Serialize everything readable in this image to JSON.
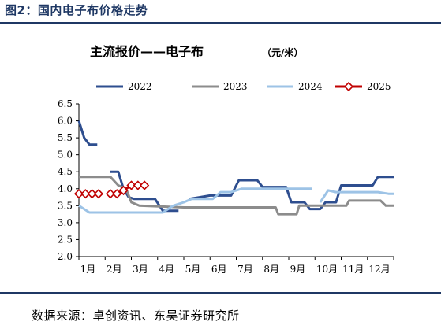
{
  "header": {
    "title": "图2：国内电子布价格走势"
  },
  "footer": {
    "source": "数据来源：卓创资讯、东吴证券研究所"
  },
  "chart_data": {
    "type": "line",
    "title": "主流报价——电子布",
    "unit": "（元/米）",
    "xlabel": "",
    "ylabel": "",
    "x_tick_labels": [
      "1月",
      "2月",
      "3月",
      "4月",
      "5月",
      "6月",
      "7月",
      "8月",
      "9月",
      "10月",
      "11月",
      "12月"
    ],
    "y_tick_labels": [
      "2.0",
      "2.5",
      "3.0",
      "3.5",
      "4.0",
      "4.5",
      "5.0",
      "5.5",
      "6.0",
      "6.5"
    ],
    "ylim": [
      2.0,
      6.5
    ],
    "xlim": [
      1,
      13
    ],
    "grid": false,
    "legend_position": "top",
    "series": [
      {
        "name": "2022",
        "color": "#2e4e8f",
        "marker": "none",
        "points": [
          [
            1.0,
            6.0
          ],
          [
            1.2,
            5.5
          ],
          [
            1.4,
            5.3
          ],
          [
            1.7,
            5.3
          ]
        ]
      },
      {
        "name": "2022",
        "color": "#2e4e8f",
        "marker": "none",
        "legend": false,
        "points": [
          [
            2.2,
            4.5
          ],
          [
            2.5,
            4.5
          ],
          [
            2.7,
            4.0
          ],
          [
            2.9,
            3.75
          ],
          [
            3.1,
            3.7
          ],
          [
            3.9,
            3.7
          ],
          [
            4.2,
            3.35
          ],
          [
            4.8,
            3.35
          ]
        ]
      },
      {
        "name": "2022",
        "color": "#2e4e8f",
        "marker": "none",
        "legend": false,
        "points": [
          [
            5.2,
            3.7
          ],
          [
            5.6,
            3.75
          ],
          [
            6.0,
            3.8
          ],
          [
            6.8,
            3.8
          ],
          [
            7.1,
            4.25
          ],
          [
            7.8,
            4.25
          ],
          [
            8.0,
            4.05
          ],
          [
            8.9,
            4.05
          ],
          [
            9.1,
            3.6
          ],
          [
            9.6,
            3.6
          ],
          [
            9.8,
            3.4
          ],
          [
            10.2,
            3.4
          ],
          [
            10.4,
            3.6
          ],
          [
            10.8,
            3.6
          ],
          [
            11.0,
            4.1
          ],
          [
            12.2,
            4.1
          ],
          [
            12.4,
            4.35
          ],
          [
            13.0,
            4.35
          ]
        ]
      },
      {
        "name": "2023",
        "color": "#8c8c8c",
        "marker": "none",
        "points": [
          [
            1.0,
            4.35
          ],
          [
            2.2,
            4.35
          ],
          [
            2.5,
            4.1
          ],
          [
            2.8,
            4.0
          ],
          [
            3.0,
            3.6
          ],
          [
            3.3,
            3.5
          ],
          [
            5.0,
            3.45
          ],
          [
            8.0,
            3.45
          ],
          [
            8.5,
            3.45
          ],
          [
            8.6,
            3.25
          ],
          [
            9.3,
            3.25
          ],
          [
            9.4,
            3.5
          ],
          [
            11.2,
            3.5
          ],
          [
            11.3,
            3.65
          ],
          [
            12.5,
            3.65
          ],
          [
            12.7,
            3.5
          ],
          [
            13.0,
            3.5
          ]
        ]
      },
      {
        "name": "2024",
        "color": "#9dc3e6",
        "marker": "none",
        "points": [
          [
            1.0,
            3.5
          ],
          [
            1.4,
            3.3
          ],
          [
            2.3,
            3.3
          ],
          [
            4.2,
            3.3
          ],
          [
            4.6,
            3.5
          ],
          [
            5.0,
            3.6
          ],
          [
            5.3,
            3.7
          ],
          [
            6.1,
            3.7
          ],
          [
            6.4,
            3.9
          ],
          [
            6.8,
            3.9
          ],
          [
            7.2,
            4.0
          ],
          [
            9.9,
            4.0
          ]
        ]
      },
      {
        "name": "2024",
        "color": "#9dc3e6",
        "marker": "none",
        "legend": false,
        "points": [
          [
            10.2,
            3.6
          ],
          [
            10.5,
            3.95
          ],
          [
            10.8,
            3.9
          ],
          [
            12.4,
            3.9
          ],
          [
            12.8,
            3.85
          ],
          [
            13.0,
            3.85
          ]
        ]
      },
      {
        "name": "2025",
        "color": "#c00000",
        "marker": "diamond",
        "points": [
          [
            1.0,
            3.85
          ],
          [
            1.25,
            3.85
          ],
          [
            1.5,
            3.85
          ],
          [
            1.75,
            3.85
          ]
        ]
      },
      {
        "name": "2025",
        "color": "#c00000",
        "marker": "diamond",
        "legend": false,
        "points": [
          [
            2.2,
            3.85
          ],
          [
            2.45,
            3.85
          ],
          [
            2.7,
            3.95
          ],
          [
            3.0,
            4.1
          ],
          [
            3.25,
            4.1
          ],
          [
            3.5,
            4.1
          ]
        ]
      }
    ]
  }
}
